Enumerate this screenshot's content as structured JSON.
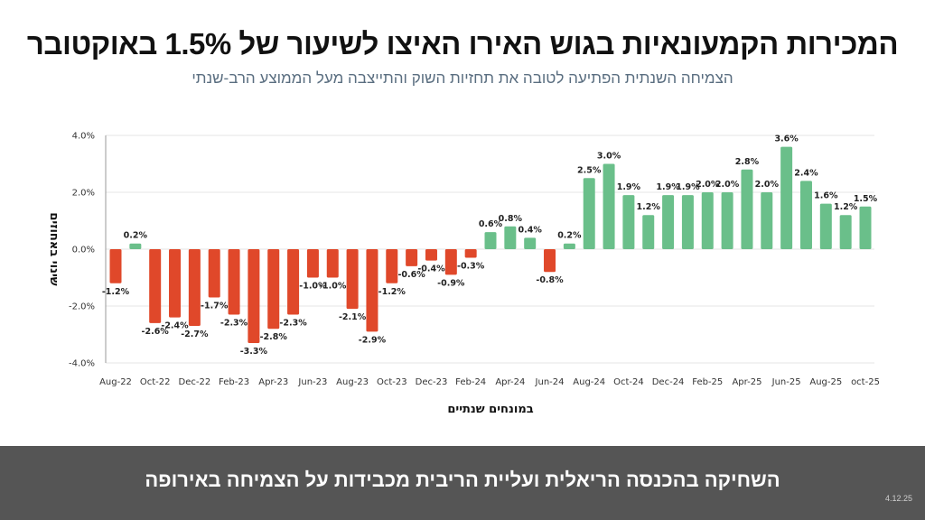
{
  "header": {
    "title": "המכירות הקמעונאיות בגוש האירו האיצו לשיעור של 1.5% באוקטובר",
    "subtitle": "הצמיחה השנתית הפתיעה לטובה את תחזיות השוק והתייצבה מעל הממוצע הרב-שנתי"
  },
  "footer": {
    "text": "השחיקה בהכנסה הריאלית ועליית הריבית מכבידות על הצמיחה באירופה",
    "date": "4.12.25"
  },
  "colors": {
    "positive": "#6abf8a",
    "negative": "#e0482a",
    "grid": "#e6e6e6",
    "axis": "#999999"
  },
  "chart_data": {
    "type": "bar",
    "title": "",
    "xlabel": "במונחים שנתיים",
    "ylabel": "שינוי באחוזים",
    "ylim": [
      -4.0,
      4.0
    ],
    "yticks": [
      4.0,
      2.0,
      0.0,
      -2.0,
      -4.0
    ],
    "ytick_labels": [
      "4.0%",
      "2.0%",
      "0.0%",
      "-2.0%",
      "-4.0%"
    ],
    "grid": true,
    "legend": "none",
    "categories": [
      "Aug-22",
      "Sep-22",
      "Oct-22",
      "Nov-22",
      "Dec-22",
      "Jan-23",
      "Feb-23",
      "Mar-23",
      "Apr-23",
      "May-23",
      "Jun-23",
      "Jul-23",
      "Aug-23",
      "Sep-23",
      "Oct-23",
      "Nov-23",
      "Dec-23",
      "Jan-24",
      "Feb-24",
      "Mar-24",
      "Apr-24",
      "May-24",
      "Jun-24",
      "Jul-24",
      "Aug-24",
      "Sep-24",
      "Oct-24",
      "Nov-24",
      "Dec-24",
      "Jan-25",
      "Feb-25",
      "Mar-25",
      "Apr-25",
      "May-25",
      "Jun-25",
      "Jul-25",
      "Aug-25",
      "Sep-25",
      "oct-25"
    ],
    "xtick_labels": [
      "Aug-22",
      "Oct-22",
      "Dec-22",
      "Feb-23",
      "Apr-23",
      "Jun-23",
      "Aug-23",
      "Oct-23",
      "Dec-23",
      "Feb-24",
      "Apr-24",
      "Jun-24",
      "Aug-24",
      "Oct-24",
      "Dec-24",
      "Feb-25",
      "Apr-25",
      "Jun-25",
      "Aug-25",
      "oct-25"
    ],
    "values": [
      -1.2,
      0.2,
      -2.6,
      -2.4,
      -2.7,
      -1.7,
      -2.3,
      -3.3,
      -2.8,
      -2.3,
      -1.0,
      -1.0,
      -2.1,
      -2.9,
      -1.2,
      -0.6,
      -0.4,
      -0.9,
      -0.3,
      0.6,
      0.8,
      0.4,
      -0.8,
      0.2,
      2.5,
      3.0,
      1.9,
      1.2,
      1.9,
      1.9,
      2.0,
      2.0,
      2.8,
      2.0,
      3.6,
      2.4,
      1.6,
      1.2,
      1.5
    ],
    "value_labels": [
      "-1.2%",
      "0.2%",
      "-2.6%",
      "-2.4%",
      "-2.7%",
      "-1.7%",
      "-2.3%",
      "-3.3%",
      "-2.8%",
      "-2.3%",
      "-1.0%",
      "-1.0%",
      "-2.1%",
      "-2.9%",
      "-1.2%",
      "-0.6%",
      "-0.4%",
      "-0.9%",
      "-0.3%",
      "0.6%",
      "0.8%",
      "0.4%",
      "-0.8%",
      "0.2%",
      "2.5%",
      "3.0%",
      "1.9%",
      "1.2%",
      "1.9%",
      "1.9%",
      "2.0%",
      "2.0%",
      "2.8%",
      "2.0%",
      "3.6%",
      "2.4%",
      "1.6%",
      "1.2%",
      "1.5%"
    ]
  }
}
